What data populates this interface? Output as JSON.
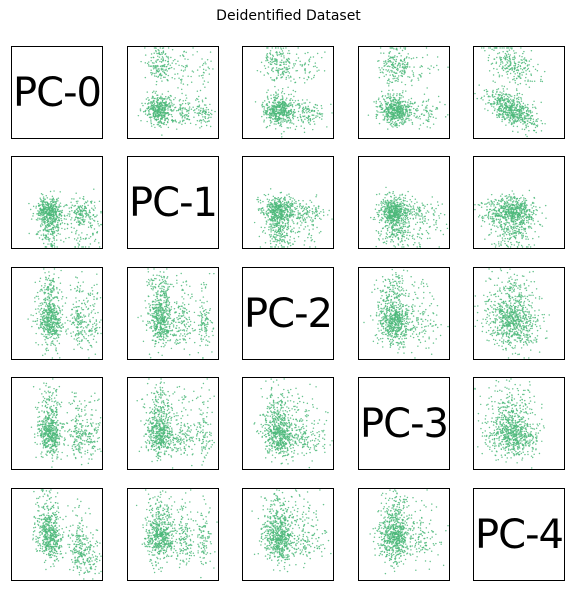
{
  "chart_data": {
    "type": "scatter",
    "layout": "pairplot-matrix",
    "title": "Deidentified Dataset",
    "variables": [
      "PC-0",
      "PC-1",
      "PC-2",
      "PC-3",
      "PC-4"
    ],
    "marker_color": "#4cb87a",
    "marker": "small dots",
    "points_per_panel": 800,
    "axes_ticks": false,
    "diagonal": "variable name"
  }
}
